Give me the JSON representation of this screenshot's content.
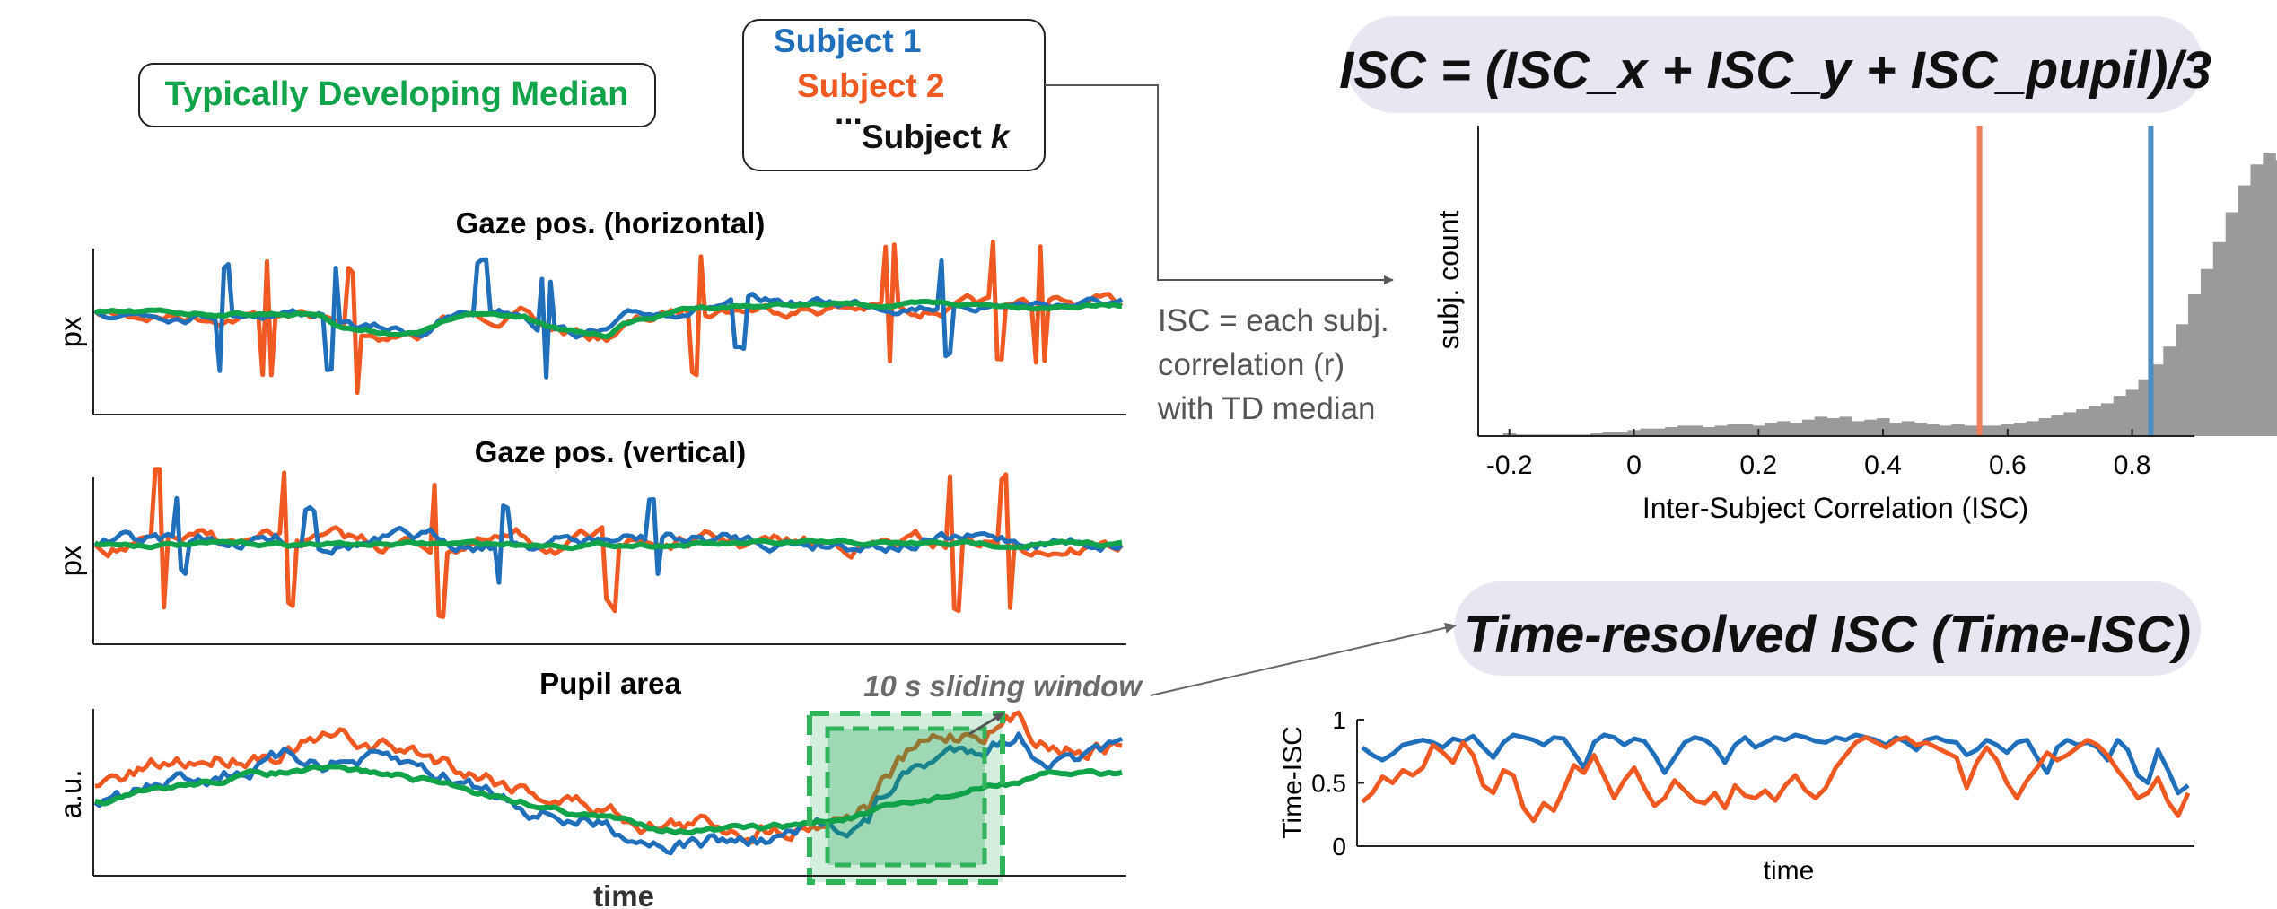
{
  "colors": {
    "subject1": "#1f6fba",
    "subject2": "#f05a22",
    "td_median": "#11a34a",
    "histogram": "#9a9a9a",
    "pill_bg": "#e8e6f1",
    "line_subject1": "#4a8fc4",
    "line_subject2": "#ef7f5a",
    "annot_gray": "#6b6b6b"
  },
  "legend": {
    "td_label": "Typically Developing Median",
    "subject1": "Subject 1",
    "subject2": "Subject 2",
    "ellipsis": "...",
    "subjectk_prefix": "Subject ",
    "subjectk_k": "k"
  },
  "panels": {
    "gaze_h_title": "Gaze pos. (horizontal)",
    "gaze_v_title": "Gaze pos. (vertical)",
    "pupil_title": "Pupil area",
    "ylabel_px": "px",
    "ylabel_au": "a.u.",
    "xlabel_time": "time",
    "window_label": "10 s sliding window"
  },
  "isc_note": {
    "line1": "ISC = each subj.",
    "line2": "correlation (r)",
    "line3": "with TD median"
  },
  "formula": {
    "isc_formula": "ISC = (ISC_x + ISC_y + ISC_pupil)/3",
    "time_resolved_title": "Time-resolved ISC (Time-ISC)"
  },
  "chart_data": [
    {
      "type": "bar",
      "ylabel": "subj. count",
      "xlabel": "Inter-Subject Correlation (ISC)",
      "xticks": [
        "-0.2",
        "0",
        "0.2",
        "0.4",
        "0.6",
        "0.8"
      ],
      "xlim": [
        -0.25,
        0.9
      ],
      "bin_width": 0.02,
      "bin_start": -0.21,
      "counts": [
        2,
        1,
        1,
        1,
        1,
        1,
        1,
        2,
        3,
        3,
        4,
        5,
        5,
        6,
        7,
        7,
        6,
        7,
        8,
        8,
        7,
        9,
        10,
        9,
        11,
        13,
        12,
        13,
        10,
        11,
        12,
        9,
        10,
        9,
        8,
        7,
        8,
        7,
        7,
        7,
        8,
        9,
        10,
        12,
        14,
        16,
        18,
        20,
        22,
        27,
        31,
        38,
        48,
        60,
        75,
        95,
        112,
        130,
        150,
        168,
        182,
        190,
        185,
        170,
        145,
        110,
        70,
        30,
        5,
        1
      ],
      "markers": [
        {
          "series": "Subject 2",
          "value": 0.555
        },
        {
          "series": "Subject 1",
          "value": 0.83
        }
      ]
    },
    {
      "type": "line",
      "ylabel": "Time-ISC",
      "xlabel": "time",
      "yticks": [
        "0",
        "0.5",
        "1"
      ],
      "ylim": [
        0,
        1
      ],
      "series": [
        {
          "name": "Subject 1",
          "values": [
            0.78,
            0.72,
            0.68,
            0.73,
            0.8,
            0.82,
            0.84,
            0.82,
            0.78,
            0.85,
            0.83,
            0.87,
            0.78,
            0.7,
            0.82,
            0.88,
            0.86,
            0.84,
            0.8,
            0.86,
            0.85,
            0.74,
            0.62,
            0.82,
            0.88,
            0.86,
            0.8,
            0.85,
            0.83,
            0.72,
            0.58,
            0.7,
            0.82,
            0.86,
            0.84,
            0.78,
            0.66,
            0.8,
            0.86,
            0.78,
            0.82,
            0.86,
            0.84,
            0.88,
            0.86,
            0.83,
            0.82,
            0.86,
            0.84,
            0.88,
            0.86,
            0.84,
            0.8,
            0.86,
            0.82,
            0.76,
            0.84,
            0.86,
            0.83,
            0.82,
            0.72,
            0.76,
            0.84,
            0.8,
            0.74,
            0.82,
            0.84,
            0.7,
            0.58,
            0.78,
            0.84,
            0.8,
            0.82,
            0.78,
            0.68,
            0.84,
            0.76,
            0.56,
            0.5,
            0.76,
            0.6,
            0.42,
            0.48
          ]
        },
        {
          "name": "Subject 2",
          "values": [
            0.35,
            0.42,
            0.55,
            0.5,
            0.6,
            0.56,
            0.62,
            0.8,
            0.74,
            0.66,
            0.82,
            0.72,
            0.48,
            0.42,
            0.6,
            0.56,
            0.3,
            0.2,
            0.34,
            0.28,
            0.45,
            0.64,
            0.58,
            0.72,
            0.55,
            0.38,
            0.52,
            0.62,
            0.46,
            0.32,
            0.38,
            0.52,
            0.44,
            0.36,
            0.34,
            0.42,
            0.3,
            0.48,
            0.4,
            0.38,
            0.44,
            0.36,
            0.48,
            0.56,
            0.44,
            0.38,
            0.46,
            0.62,
            0.72,
            0.82,
            0.86,
            0.82,
            0.78,
            0.84,
            0.86,
            0.8,
            0.82,
            0.78,
            0.74,
            0.7,
            0.46,
            0.66,
            0.78,
            0.68,
            0.5,
            0.38,
            0.52,
            0.62,
            0.74,
            0.68,
            0.72,
            0.78,
            0.84,
            0.8,
            0.72,
            0.6,
            0.5,
            0.38,
            0.42,
            0.54,
            0.35,
            0.24,
            0.42
          ]
        }
      ]
    }
  ]
}
